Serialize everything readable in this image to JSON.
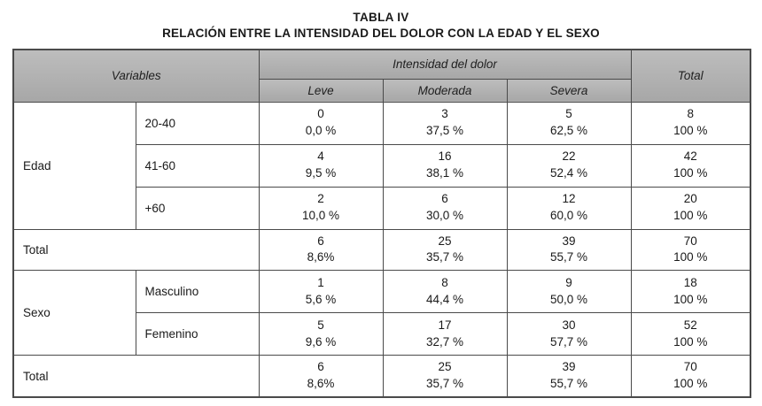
{
  "title": "TABLA IV",
  "subtitle": "RELACIÓN ENTRE LA INTENSIDAD DEL DOLOR CON LA EDAD Y EL SEXO",
  "colors": {
    "header_bg": "#b0b0b0",
    "border": "#4a4a4a",
    "text": "#1a1a1a",
    "page_bg": "#ffffff"
  },
  "table": {
    "header": {
      "variables": "Variables",
      "intensity": "Intensidad del dolor",
      "total": "Total",
      "levels": [
        "Leve",
        "Moderada",
        "Severa"
      ]
    },
    "groups": [
      {
        "name": "Edad"
      },
      {
        "name": "Sexo"
      }
    ],
    "rows": [
      {
        "label": "20-40",
        "cells": [
          [
            "0",
            "0,0 %"
          ],
          [
            "3",
            "37,5 %"
          ],
          [
            "5",
            "62,5 %"
          ],
          [
            "8",
            "100 %"
          ]
        ]
      },
      {
        "label": "41-60",
        "cells": [
          [
            "4",
            "9,5 %"
          ],
          [
            "16",
            "38,1 %"
          ],
          [
            "22",
            "52,4 %"
          ],
          [
            "42",
            "100 %"
          ]
        ]
      },
      {
        "label": "+60",
        "cells": [
          [
            "2",
            "10,0 %"
          ],
          [
            "6",
            "30,0 %"
          ],
          [
            "12",
            "60,0 %"
          ],
          [
            "20",
            "100 %"
          ]
        ]
      },
      {
        "label": "Total",
        "cells": [
          [
            "6",
            "8,6%"
          ],
          [
            "25",
            "35,7 %"
          ],
          [
            "39",
            "55,7 %"
          ],
          [
            "70",
            "100 %"
          ]
        ]
      },
      {
        "label": "Masculino",
        "cells": [
          [
            "1",
            "5,6 %"
          ],
          [
            "8",
            "44,4 %"
          ],
          [
            "9",
            "50,0 %"
          ],
          [
            "18",
            "100 %"
          ]
        ]
      },
      {
        "label": "Femenino",
        "cells": [
          [
            "5",
            "9,6 %"
          ],
          [
            "17",
            "32,7 %"
          ],
          [
            "30",
            "57,7 %"
          ],
          [
            "52",
            "100 %"
          ]
        ]
      },
      {
        "label": "Total",
        "cells": [
          [
            "6",
            "8,6%"
          ],
          [
            "25",
            "35,7 %"
          ],
          [
            "39",
            "55,7 %"
          ],
          [
            "70",
            "100 %"
          ]
        ]
      }
    ]
  },
  "chart_data": {
    "type": "table",
    "title": "TABLA IV — RELACIÓN ENTRE LA INTENSIDAD DEL DOLOR CON LA EDAD Y EL SEXO",
    "columns": [
      "Variables",
      "",
      "Leve",
      "Moderada",
      "Severa",
      "Total"
    ],
    "rows": [
      [
        "Edad",
        "20-40",
        "0 (0,0 %)",
        "3 (37,5 %)",
        "5 (62,5 %)",
        "8 (100 %)"
      ],
      [
        "Edad",
        "41-60",
        "4 (9,5 %)",
        "16 (38,1 %)",
        "22 (52,4 %)",
        "42 (100 %)"
      ],
      [
        "Edad",
        "+60",
        "2 (10,0 %)",
        "6 (30,0 %)",
        "12 (60,0 %)",
        "20 (100 %)"
      ],
      [
        "Total",
        "",
        "6 (8,6%)",
        "25 (35,7 %)",
        "39 (55,7 %)",
        "70 (100 %)"
      ],
      [
        "Sexo",
        "Masculino",
        "1 (5,6 %)",
        "8 (44,4 %)",
        "9 (50,0 %)",
        "18 (100 %)"
      ],
      [
        "Sexo",
        "Femenino",
        "5 (9,6 %)",
        "17 (32,7 %)",
        "30 (57,7 %)",
        "52 (100 %)"
      ],
      [
        "Total",
        "",
        "6 (8,6%)",
        "25 (35,7 %)",
        "39 (55,7 %)",
        "70 (100 %)"
      ]
    ]
  }
}
